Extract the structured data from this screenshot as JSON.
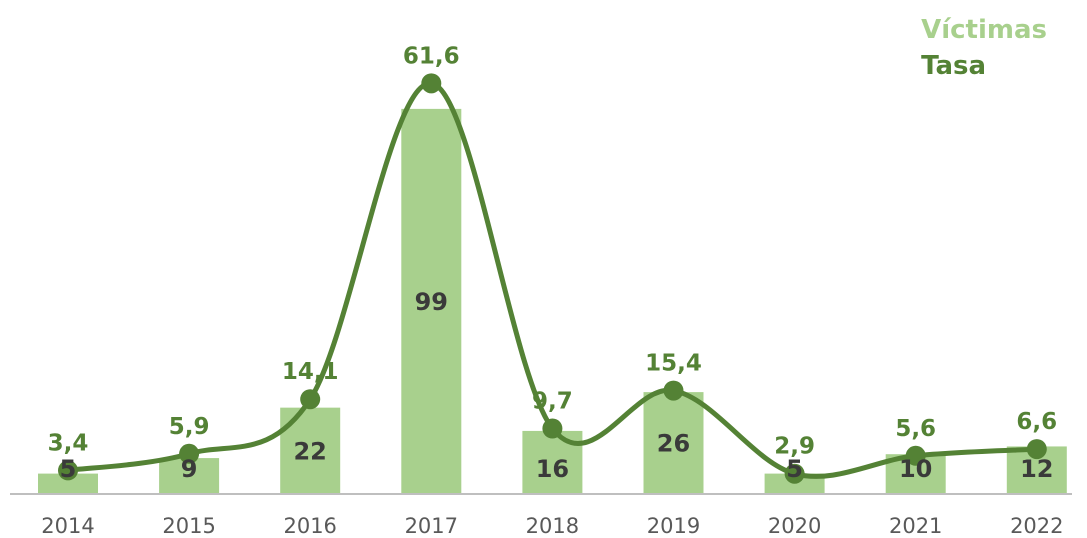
{
  "chart_data": {
    "type": "bar",
    "categories": [
      "2014",
      "2015",
      "2016",
      "2017",
      "2018",
      "2019",
      "2020",
      "2021",
      "2022"
    ],
    "series": [
      {
        "name": "Víctimas",
        "type": "bar",
        "values": [
          5,
          9,
          22,
          99,
          16,
          26,
          5,
          10,
          12
        ],
        "labels": [
          "5",
          "9",
          "22",
          "99",
          "16",
          "26",
          "5",
          "10",
          "12"
        ]
      },
      {
        "name": "Tasa",
        "type": "line",
        "smooth": true,
        "values": [
          3.4,
          5.9,
          14.1,
          61.6,
          9.7,
          15.4,
          2.9,
          5.6,
          6.6
        ],
        "labels": [
          "3,4",
          "5,9",
          "14,1",
          "61,6",
          "9,7",
          "15,4",
          "2,9",
          "5,6",
          "6,6"
        ]
      }
    ],
    "legend": "top-right",
    "grid": false,
    "colors": {
      "bar": "#a8d08d",
      "line": "#548235",
      "bar_label": "#3a3a3a",
      "axis": "#bfbfbf",
      "tick": "#595959"
    }
  }
}
